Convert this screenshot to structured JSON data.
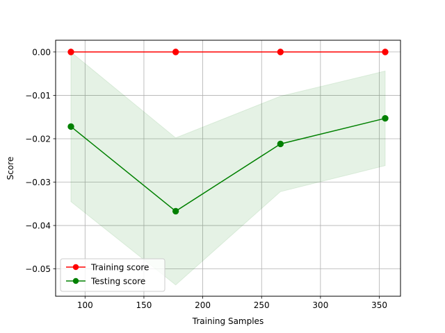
{
  "chart_data": {
    "type": "line",
    "title": "",
    "xlabel": "Training Samples",
    "ylabel": "Score",
    "xlim": [
      75,
      368
    ],
    "ylim": [
      -0.0563,
      0.0027
    ],
    "xticks": [
      100,
      150,
      200,
      250,
      300,
      350
    ],
    "xtick_labels": [
      "100",
      "150",
      "200",
      "250",
      "300",
      "350"
    ],
    "yticks": [
      0.0,
      -0.01,
      -0.02,
      -0.03,
      -0.04,
      -0.05
    ],
    "ytick_labels": [
      "0.00",
      "−0.01",
      "−0.02",
      "−0.03",
      "−0.04",
      "−0.05"
    ],
    "grid": true,
    "legend_position": "lower-left",
    "x": [
      88,
      177,
      266,
      355
    ],
    "series": [
      {
        "name": "Training score",
        "color": "#ff0000",
        "values": [
          0.0,
          0.0,
          0.0,
          0.0
        ],
        "band_lower": [
          0.0,
          0.0,
          0.0,
          0.0
        ],
        "band_upper": [
          0.0,
          0.0,
          0.0,
          0.0
        ]
      },
      {
        "name": "Testing score",
        "color": "#008000",
        "values": [
          -0.0172,
          -0.0367,
          -0.0212,
          -0.0153
        ],
        "band_lower": [
          -0.0345,
          -0.0537,
          -0.0322,
          -0.0262
        ],
        "band_upper": [
          0.0,
          -0.0198,
          -0.0102,
          -0.0044
        ]
      }
    ]
  }
}
